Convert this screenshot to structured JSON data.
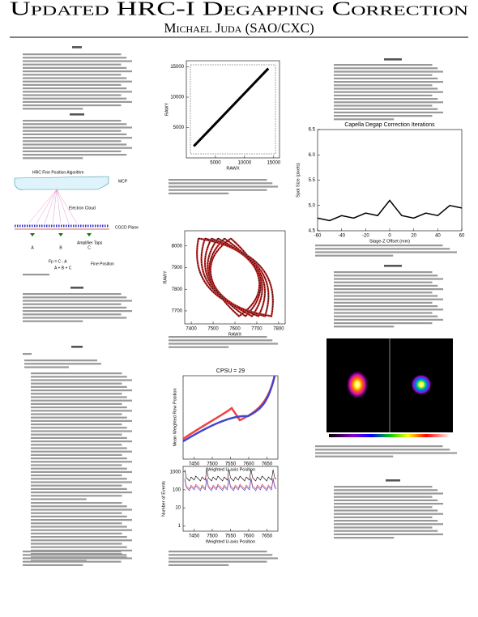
{
  "header": {
    "title": "Updated HRC-I Degapping Correction",
    "author": "Michael Juda (SAO/CXC)"
  },
  "diagram": {
    "title": "HRC Fine Position Algorithm",
    "mcp": "MCP",
    "cloud": "Electron Cloud",
    "plane": "CGCD Plane",
    "taps": "Amplifier Taps",
    "a": "A",
    "b": "B",
    "c": "C",
    "formula_top": "Fp = C - A",
    "formula_bottom": "A + B + C",
    "fine": "Fine Position"
  },
  "figures": [
    {
      "type": "scatter",
      "xlabel": "RAWX",
      "ylabel": "RAWY",
      "xlim": [
        0,
        16000
      ],
      "ylim": [
        0,
        16000
      ],
      "xticks": [
        5000,
        10000,
        15000
      ],
      "yticks": [
        5000,
        10000,
        15000
      ]
    },
    {
      "type": "scatter",
      "xlabel": "RAWX",
      "ylabel": "RAWY",
      "xlim": [
        7370,
        7830
      ],
      "ylim": [
        7640,
        8070
      ],
      "xticks": [
        7400,
        7500,
        7600,
        7700,
        7800
      ],
      "yticks": [
        7700,
        7800,
        7900,
        8000
      ]
    },
    {
      "type": "line",
      "title": "Capella Degap Correction Iterations",
      "xlabel": "Stage-Z Offset (mm)",
      "ylabel": "Spot Size (pixels)",
      "xlim": [
        -60,
        60
      ],
      "ylim": [
        4.5,
        6.5
      ],
      "xticks": [
        -60,
        -40,
        -20,
        0,
        20,
        40,
        60
      ],
      "yticks": [
        4.5,
        {
          "value": 5,
          "label": "5.0"
        },
        5.5,
        {
          "value": 6,
          "label": "6.0"
        },
        6.5
      ],
      "x": [
        -60,
        -50,
        -40,
        -30,
        -20,
        -10,
        0,
        10,
        20,
        30,
        40,
        50,
        60
      ],
      "series": [
        {
          "color": "#000000",
          "values": [
            4.75,
            4.7,
            4.8,
            4.75,
            4.85,
            4.8,
            5.1,
            4.8,
            4.75,
            4.85,
            4.8,
            5.0,
            4.95
          ]
        }
      ]
    },
    {
      "type": "profile",
      "title": "CPSU = 29",
      "xlabel": "Weighted U-axis Position",
      "ylabel": "Mean Weighted Row Position",
      "xlim": [
        7420,
        7680
      ],
      "xticks": [
        7450,
        7500,
        7550,
        7600,
        7650
      ]
    },
    {
      "type": "counts",
      "xlabel": "Weighted U-axis Position",
      "ylabel": "Number of Events",
      "xlim": [
        7420,
        7680
      ],
      "ylim": [
        0.5,
        2000
      ],
      "ylog": true,
      "xticks": [
        7450,
        7500,
        7550,
        7600,
        7650
      ],
      "yticks": [
        1,
        10,
        100,
        1000
      ]
    }
  ]
}
